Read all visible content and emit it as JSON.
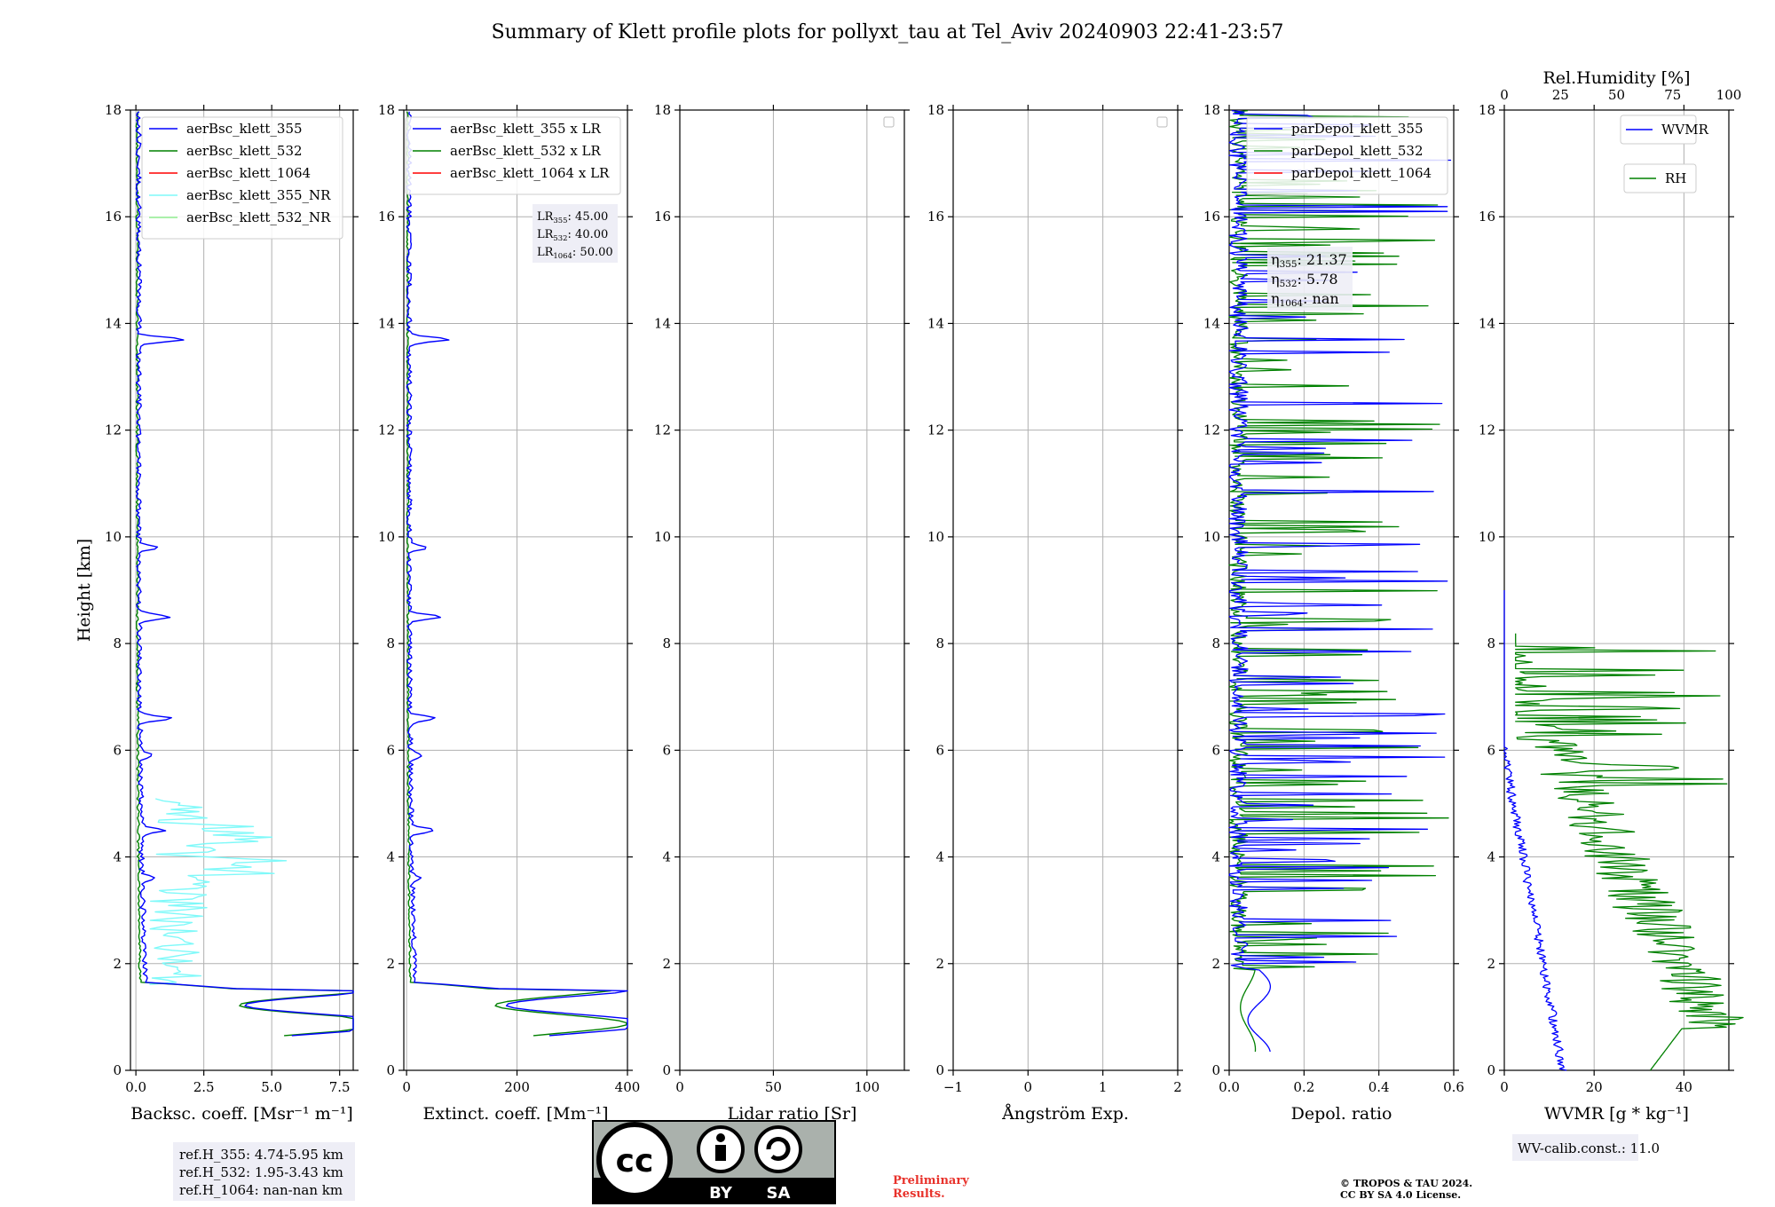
{
  "title": "Summary of Klett profile plots for pollyxt_tau at Tel_Aviv 20240903 22:41-23:57",
  "chart_data": [
    {
      "type": "line",
      "id": "bsc",
      "xlabel": "Backsc. coeff. [Msr⁻¹ m⁻¹]",
      "ylabel": "Height [km]",
      "xlim": [
        -0.2,
        8.0
      ],
      "ylim": [
        0,
        18
      ],
      "xticks": [
        "0.0",
        "2.5",
        "5.0",
        "7.5"
      ],
      "xtick_values": [
        0,
        2.5,
        5,
        7.5
      ],
      "yticks": [
        "0",
        "2",
        "4",
        "6",
        "8",
        "10",
        "12",
        "14",
        "16",
        "18"
      ],
      "grid": true,
      "legend_position": "top-right",
      "series": [
        {
          "name": "aerBsc_klett_355",
          "color": "#0000ff"
        },
        {
          "name": "aerBsc_klett_532",
          "color": "#008000"
        },
        {
          "name": "aerBsc_klett_1064",
          "color": "#ff0000"
        },
        {
          "name": "aerBsc_klett_355_NR",
          "color": "#7ff9f9"
        },
        {
          "name": "aerBsc_klett_532_NR",
          "color": "#90ee90"
        }
      ],
      "notes": [
        "ref.H_355: 4.74-5.95 km",
        "ref.H_532: 1.95-3.43 km",
        "ref.H_1064: nan-nan km"
      ]
    },
    {
      "type": "line",
      "id": "ext",
      "xlabel": "Extinct. coeff. [Mm⁻¹]",
      "xlim": [
        -5,
        400
      ],
      "ylim": [
        0,
        18
      ],
      "xticks": [
        "0",
        "200",
        "400"
      ],
      "xtick_values": [
        0,
        200,
        400
      ],
      "yticks": [
        "0",
        "2",
        "4",
        "6",
        "8",
        "10",
        "12",
        "14",
        "16",
        "18"
      ],
      "grid": true,
      "legend_position": "top-right",
      "series": [
        {
          "name": "aerBsc_klett_355 x LR",
          "color": "#0000ff"
        },
        {
          "name": "aerBsc_klett_532 x LR",
          "color": "#008000"
        },
        {
          "name": "aerBsc_klett_1064 x LR",
          "color": "#ff0000"
        }
      ],
      "lidar_ratios": [
        {
          "label": "LR",
          "sub": "355",
          "value": ": 45.00"
        },
        {
          "label": "LR",
          "sub": "532",
          "value": ": 40.00"
        },
        {
          "label": "LR",
          "sub": "1064",
          "value": ": 50.00"
        }
      ]
    },
    {
      "type": "line",
      "id": "lr",
      "xlabel": "Lidar ratio [Sr]",
      "xlim": [
        0,
        120
      ],
      "ylim": [
        0,
        18
      ],
      "xticks": [
        "0",
        "50",
        "100"
      ],
      "xtick_values": [
        0,
        50,
        100
      ],
      "yticks": [
        "0",
        "2",
        "4",
        "6",
        "8",
        "10",
        "12",
        "14",
        "16",
        "18"
      ],
      "grid": true,
      "series": []
    },
    {
      "type": "line",
      "id": "ae",
      "xlabel": "Ångström Exp.",
      "xlim": [
        -1,
        2
      ],
      "ylim": [
        0,
        18
      ],
      "xticks": [
        "−1",
        "0",
        "1",
        "2"
      ],
      "xtick_values": [
        -1,
        0,
        1,
        2
      ],
      "yticks": [
        "0",
        "2",
        "4",
        "6",
        "8",
        "10",
        "12",
        "14",
        "16",
        "18"
      ],
      "grid": true,
      "series": []
    },
    {
      "type": "line",
      "id": "depol",
      "xlabel": "Depol. ratio",
      "xlim": [
        0,
        0.6
      ],
      "ylim": [
        0,
        18
      ],
      "xticks": [
        "0.0",
        "0.2",
        "0.4",
        "0.6"
      ],
      "xtick_values": [
        0,
        0.2,
        0.4,
        0.6
      ],
      "yticks": [
        "0",
        "2",
        "4",
        "6",
        "8",
        "10",
        "12",
        "14",
        "16",
        "18"
      ],
      "grid": true,
      "legend_position": "top-right",
      "series": [
        {
          "name": "parDepol_klett_355",
          "color": "#0000ff"
        },
        {
          "name": "parDepol_klett_532",
          "color": "#008000"
        },
        {
          "name": "parDepol_klett_1064",
          "color": "#ff0000"
        }
      ],
      "eta": [
        {
          "label": "η",
          "sub": "355",
          "value": ": 21.37"
        },
        {
          "label": "η",
          "sub": "532",
          "value": ": 5.78"
        },
        {
          "label": "η",
          "sub": "1064",
          "value": ": nan"
        }
      ]
    },
    {
      "type": "line",
      "id": "wv",
      "xlabel": "WVMR [g * kg⁻¹]",
      "top_xlabel": "Rel.Humidity [%]",
      "xlim": [
        0,
        50
      ],
      "top_xlim": [
        0,
        100
      ],
      "ylim": [
        0,
        18
      ],
      "xticks": [
        "0",
        "20",
        "40"
      ],
      "xtick_values": [
        0,
        20,
        40
      ],
      "top_xticks": [
        "0",
        "25",
        "50",
        "75",
        "100"
      ],
      "top_xtick_values": [
        0,
        25,
        50,
        75,
        100
      ],
      "yticks": [
        "0",
        "2",
        "4",
        "6",
        "8",
        "10",
        "12",
        "14",
        "16",
        "18"
      ],
      "grid": true,
      "series": [
        {
          "name": "WVMR",
          "color": "#0000ff"
        },
        {
          "name": "RH",
          "color": "#008000"
        }
      ],
      "notes": [
        "WV-calib.const.: 11.0"
      ]
    }
  ],
  "footer": {
    "license_badge": {
      "cc": "cc",
      "by": "BY",
      "sa": "SA"
    },
    "preliminary": [
      "Preliminary",
      "Results."
    ],
    "copyright": [
      "© TROPOS & TAU 2024.",
      "CC BY SA 4.0 License."
    ]
  }
}
